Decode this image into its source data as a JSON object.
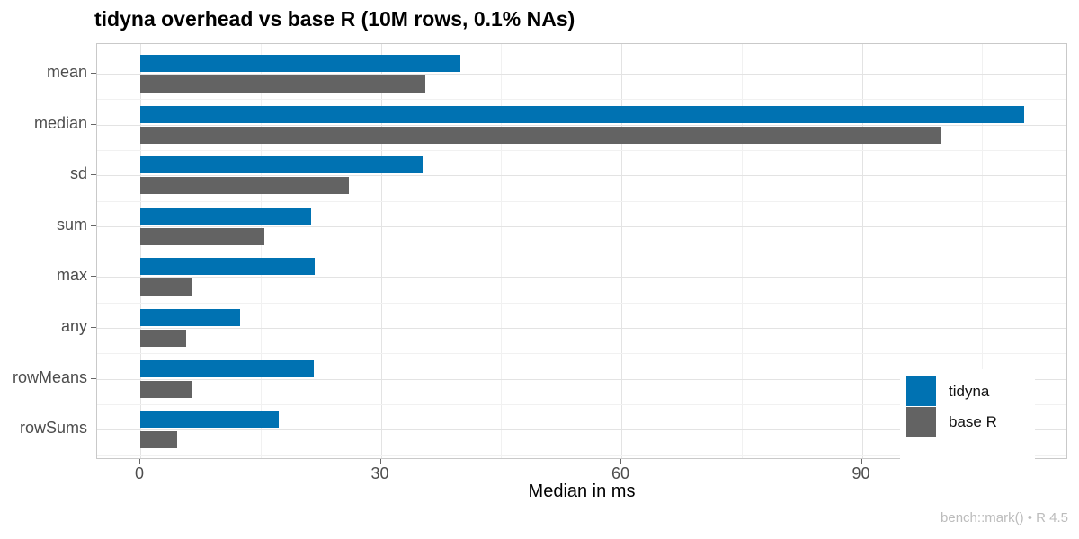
{
  "chart_data": {
    "type": "bar",
    "orientation": "horizontal",
    "title": "tidyna overhead vs base R (10M rows, 0.1% NAs)",
    "xlabel": "Median in ms",
    "ylabel": "",
    "categories": [
      "mean",
      "median",
      "sd",
      "sum",
      "max",
      "any",
      "rowMeans",
      "rowSums"
    ],
    "series": [
      {
        "name": "tidyna",
        "color": "#0072B2",
        "values": [
          39.9,
          110.2,
          35.2,
          21.3,
          21.8,
          12.4,
          21.7,
          17.3
        ]
      },
      {
        "name": "base R",
        "color": "#636363",
        "values": [
          35.5,
          99.8,
          26.0,
          15.5,
          6.5,
          5.7,
          6.5,
          4.6
        ]
      }
    ],
    "xlim": [
      0,
      115
    ],
    "xticks": [
      0,
      30,
      60,
      90
    ],
    "xticks_minor": [
      15,
      45,
      75,
      105
    ],
    "grid": true,
    "legend_position": "inside-bottom-right",
    "caption": "bench::mark() • R 4.5"
  },
  "colors": {
    "tidyna": "#0072B2",
    "base_r": "#636363",
    "grid_major": "#e3e3e3",
    "grid_minor": "#f1f1f1",
    "panel_border": "#c9c9c9",
    "tick_text": "#4d4d4d",
    "caption_text": "#bcbcbc"
  },
  "legend": {
    "items": [
      {
        "label": "tidyna",
        "color": "#0072B2"
      },
      {
        "label": "base R",
        "color": "#636363"
      }
    ]
  }
}
